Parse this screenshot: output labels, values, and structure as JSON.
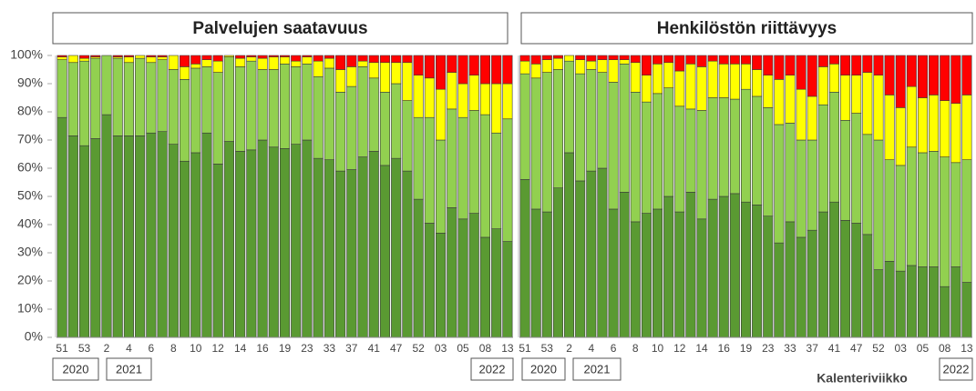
{
  "chart_data": [
    {
      "type": "bar",
      "stacked": true,
      "title": "Palvelujen saatavuus",
      "categories": [
        "51",
        null,
        "53",
        null,
        "2",
        null,
        "4",
        null,
        "6",
        null,
        "8",
        null,
        "10",
        null,
        "12",
        null,
        "14",
        null,
        "16",
        null,
        "19",
        null,
        "23",
        null,
        "33",
        null,
        "37",
        null,
        "41",
        null,
        "47",
        null,
        "52",
        null,
        "03",
        null,
        "05",
        null,
        "08",
        null,
        "13"
      ],
      "years": [
        "2020",
        "2021",
        "2022"
      ],
      "ylim": [
        0,
        100
      ],
      "yticks": [
        {
          "value": 0,
          "label": "0%"
        },
        {
          "value": 10,
          "label": "10%"
        },
        {
          "value": 20,
          "label": "20%"
        },
        {
          "value": 30,
          "label": "30%"
        },
        {
          "value": 40,
          "label": "40%"
        },
        {
          "value": 50,
          "label": "50%"
        },
        {
          "value": 60,
          "label": "60%"
        },
        {
          "value": 70,
          "label": "70%"
        },
        {
          "value": 80,
          "label": "80%"
        },
        {
          "value": 90,
          "label": "90%"
        },
        {
          "value": 100,
          "label": "100%"
        }
      ],
      "series": [
        {
          "color": "#5a9a32",
          "values": [
            78,
            71.5,
            68,
            70.5,
            79,
            71.5,
            71.5,
            71.5,
            72.5,
            73,
            68.5,
            62.5,
            65.5,
            72.5,
            61.5,
            69.5,
            66,
            66.5,
            70,
            67.5,
            67,
            68.5,
            70,
            63.5,
            63,
            59,
            59.5,
            64,
            66,
            61,
            63.5,
            59,
            49,
            40.5,
            37,
            46,
            42,
            44,
            35.5,
            38.5,
            34
          ]
        },
        {
          "color": "#92d050",
          "values": [
            20.5,
            26,
            30,
            28.5,
            21,
            27.5,
            26,
            27.5,
            25,
            25.5,
            26.5,
            29,
            30,
            23.5,
            32.5,
            30,
            30,
            31.5,
            25,
            27.5,
            30,
            27.5,
            27,
            29,
            32.5,
            28,
            29.5,
            32,
            26,
            26,
            26.5,
            25,
            29,
            37.5,
            33,
            35,
            36,
            36.5,
            43.5,
            34,
            43.5
          ]
        },
        {
          "color": "#ffff00",
          "values": [
            1,
            2.5,
            1,
            0.5,
            0,
            0.5,
            2,
            1,
            2,
            1,
            5,
            4.5,
            1.5,
            2.5,
            4,
            0.5,
            3,
            1.5,
            4,
            4.5,
            2.5,
            2,
            2.5,
            5.5,
            3.5,
            8,
            7,
            2,
            5.5,
            10.5,
            7.5,
            13.5,
            15,
            14,
            18,
            13,
            12,
            12.5,
            11,
            17.5,
            12.5
          ]
        },
        {
          "color": "#ff0000",
          "values": [
            0.5,
            0,
            1,
            0.5,
            0,
            0.5,
            0.5,
            0,
            0.5,
            0.5,
            0,
            4,
            3,
            1.5,
            2,
            0,
            1,
            0.5,
            1,
            0.5,
            0.5,
            2,
            0.5,
            2,
            1,
            5,
            4,
            2,
            2.5,
            2.5,
            2.5,
            2.5,
            7,
            8,
            12,
            6,
            10,
            7,
            10,
            10,
            10
          ]
        }
      ]
    },
    {
      "type": "bar",
      "stacked": true,
      "title": "Henkilöstön riittävyys",
      "categories": [
        "51",
        null,
        "53",
        null,
        "2",
        null,
        "4",
        null,
        "6",
        null,
        "8",
        null,
        "10",
        null,
        "12",
        null,
        "14",
        null,
        "16",
        null,
        "19",
        null,
        "23",
        null,
        "33",
        null,
        "37",
        null,
        "41",
        null,
        "47",
        null,
        "52",
        null,
        "03",
        null,
        "05",
        null,
        "08",
        null,
        "13"
      ],
      "years": [
        "2020",
        "2021",
        "2022"
      ],
      "xlabel": "Kalenteriviikko",
      "ylim": [
        0,
        100
      ],
      "series": [
        {
          "color": "#5a9a32",
          "values": [
            56,
            45.5,
            44.5,
            53,
            65.5,
            55.5,
            59,
            60,
            45.5,
            51.5,
            41,
            44,
            45.5,
            50,
            44.5,
            51.5,
            42,
            49,
            50,
            51,
            48,
            47,
            43,
            33.5,
            41,
            35.5,
            38,
            44.5,
            48,
            41.5,
            40.5,
            36.5,
            24,
            27,
            23.5,
            25.5,
            25,
            25,
            18,
            25,
            19.5
          ]
        },
        {
          "color": "#92d050",
          "values": [
            37.5,
            46.5,
            49.5,
            42,
            32.5,
            38,
            36,
            34,
            45,
            45.5,
            46,
            39.5,
            41,
            38.5,
            37.5,
            29.5,
            38.5,
            36,
            35,
            33.5,
            40,
            38.5,
            38.5,
            42,
            35,
            34.5,
            32,
            38,
            39,
            35.5,
            39,
            35.5,
            46,
            36,
            37.5,
            42,
            40.5,
            41,
            46,
            37,
            43.5
          ]
        },
        {
          "color": "#ffff00",
          "values": [
            4.5,
            5,
            4.5,
            4,
            2,
            5,
            3,
            4.5,
            8,
            1.5,
            10.5,
            9.5,
            10.5,
            9,
            12.5,
            16,
            15.5,
            13,
            12,
            12.5,
            9,
            9.5,
            11.5,
            16,
            17,
            18,
            15.5,
            13.5,
            10,
            16,
            13.5,
            22,
            23,
            23,
            20.5,
            21.5,
            19.5,
            20,
            20,
            21,
            23
          ]
        },
        {
          "color": "#ff0000",
          "values": [
            2,
            3,
            1.5,
            1,
            0,
            1.5,
            2,
            1.5,
            1.5,
            1.5,
            2.5,
            7,
            3,
            2.5,
            5.5,
            3,
            4,
            2,
            3,
            3,
            3,
            5,
            7,
            8.5,
            7,
            12,
            14.5,
            4,
            3,
            7,
            7,
            6,
            7,
            14,
            18.5,
            11,
            15,
            14,
            16,
            17,
            14
          ]
        }
      ]
    }
  ]
}
